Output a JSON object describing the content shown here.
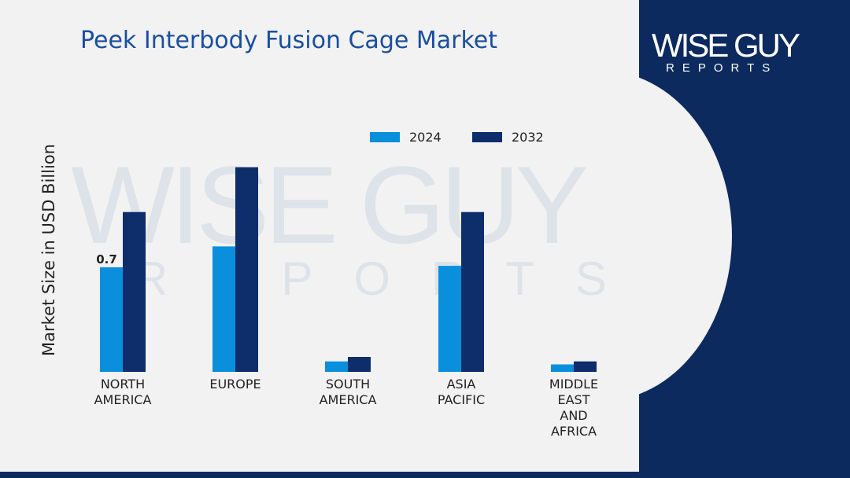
{
  "page": {
    "title": "Peek Interbody Fusion Cage Market"
  },
  "brand": {
    "name": "WISE GUY",
    "sub": "REPORTS",
    "watermark_name": "WISE GUY",
    "watermark_sub": "REPORTS"
  },
  "colors": {
    "series_2024": "#0a8fdc",
    "series_2032": "#0d2d6b",
    "accent": "#0d2a5e",
    "title": "#1a4fa0"
  },
  "chart_data": {
    "type": "bar",
    "title": "Peek Interbody Fusion Cage Market",
    "ylabel": "Market Size in USD Billion",
    "xlabel": "",
    "categories": [
      [
        "NORTH",
        "AMERICA"
      ],
      [
        "EUROPE"
      ],
      [
        "SOUTH",
        "AMERICA"
      ],
      [
        "ASIA",
        "PACIFIC"
      ],
      [
        "MIDDLE",
        "EAST",
        "AND",
        "AFRICA"
      ]
    ],
    "series": [
      {
        "name": "2024",
        "values": [
          0.7,
          0.84,
          0.07,
          0.71,
          0.05
        ]
      },
      {
        "name": "2032",
        "values": [
          1.07,
          1.37,
          0.1,
          1.07,
          0.07
        ]
      }
    ],
    "data_labels": [
      {
        "series": 0,
        "index": 0,
        "text": "0.7"
      }
    ],
    "ylim": [
      0,
      1.6
    ],
    "grid": false,
    "legend": "top-center"
  }
}
